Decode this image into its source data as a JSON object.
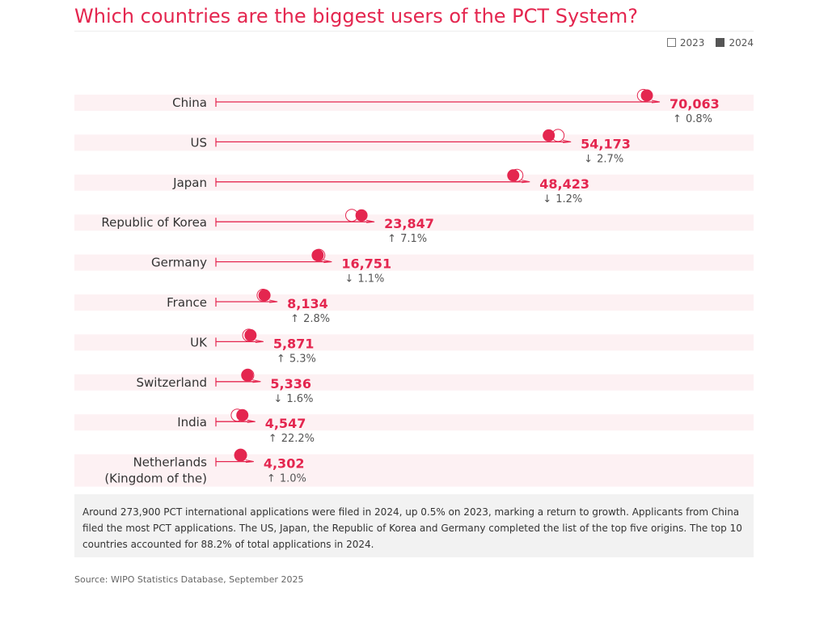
{
  "title": "Which countries are the biggest users of the PCT System?",
  "legend": [
    {
      "label": "2023",
      "style": "outline"
    },
    {
      "label": "2024",
      "style": "filled"
    }
  ],
  "colors": {
    "accent": "#e4264f",
    "band": "#fdf1f3",
    "legend_fill": "#555555"
  },
  "chart_data": {
    "type": "dot-plot",
    "title": "Which countries are the biggest users of the PCT System?",
    "categories": [
      "China",
      "US",
      "Japan",
      "Republic of Korea",
      "Germany",
      "France",
      "UK",
      "Switzerland",
      "India",
      "Netherlands (Kingdom of the)"
    ],
    "category_lines": [
      [
        "China"
      ],
      [
        "US"
      ],
      [
        "Japan"
      ],
      [
        "Republic of Korea"
      ],
      [
        "Germany"
      ],
      [
        "France"
      ],
      [
        "UK"
      ],
      [
        "Switzerland"
      ],
      [
        "India"
      ],
      [
        "Netherlands",
        "(Kingdom of the)"
      ]
    ],
    "series": [
      {
        "name": "2023",
        "values": [
          69507,
          55676,
          49011,
          22266,
          16937,
          7912,
          5576,
          5423,
          3721,
          4259
        ]
      },
      {
        "name": "2024",
        "values": [
          70063,
          54173,
          48423,
          23847,
          16751,
          8134,
          5871,
          5336,
          4547,
          4302
        ]
      }
    ],
    "value_labels": [
      "70,063",
      "54,173",
      "48,423",
      "23,847",
      "16,751",
      "8,134",
      "5,871",
      "5,336",
      "4,547",
      "4,302"
    ],
    "change_direction": [
      "up",
      "down",
      "down",
      "up",
      "down",
      "up",
      "up",
      "down",
      "up",
      "up"
    ],
    "change_labels": [
      "0.8%",
      "2.7%",
      "1.2%",
      "7.1%",
      "1.1%",
      "2.8%",
      "5.3%",
      "1.6%",
      "22.2%",
      "1.0%"
    ]
  },
  "notes": "Around 273,900 PCT international applications were filed in 2024, up 0.5% on 2023, marking a return to growth. Applicants from China filed the most PCT applications. The US, Japan, the Republic of Korea and Germany completed the list of the top five origins. The top 10 countries accounted for 88.2% of total applications in 2024.",
  "source": "Source: WIPO Statistics Database, September 2025"
}
